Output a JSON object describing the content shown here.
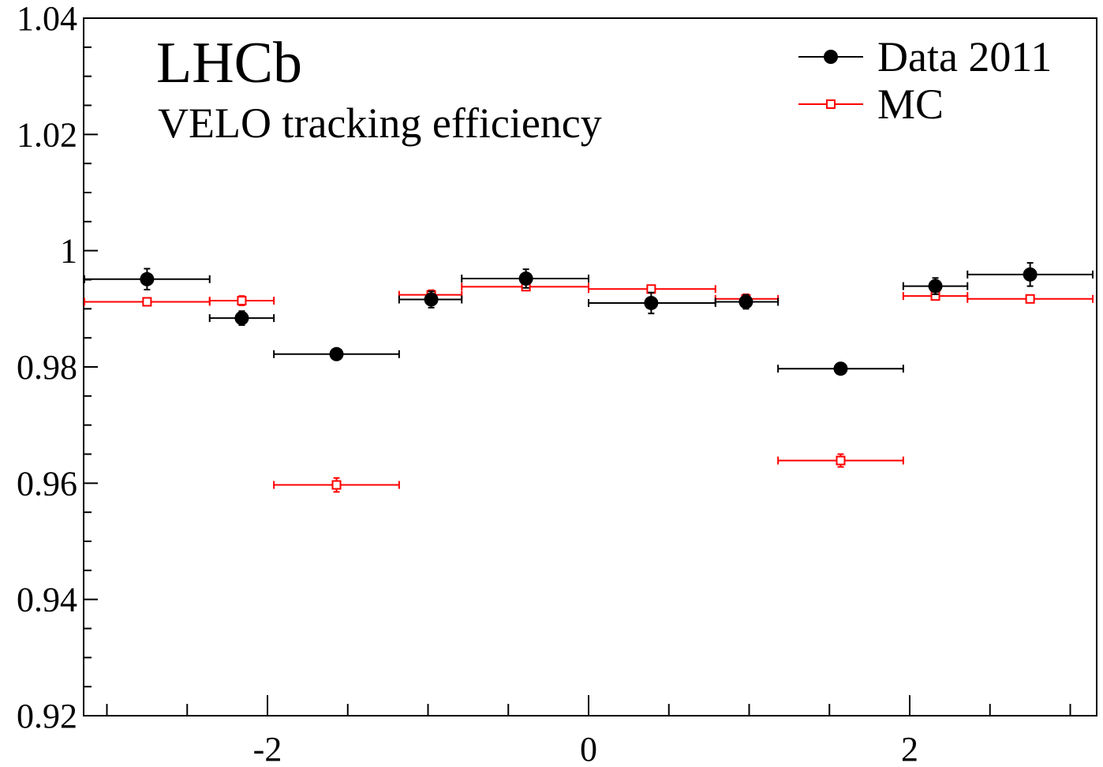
{
  "chart_data": {
    "type": "scatter",
    "title": "LHCb",
    "subtitle": "VELO tracking efficiency",
    "xlabel": "",
    "ylabel": "",
    "xlim": [
      -3.0,
      3.2
    ],
    "ylim": [
      0.92,
      1.04
    ],
    "x_ticks": [
      -2,
      0,
      2
    ],
    "x_tick_labels": [
      "-2",
      "0",
      "2"
    ],
    "y_ticks": [
      0.92,
      0.94,
      0.96,
      0.98,
      1.0,
      1.02,
      1.04
    ],
    "y_tick_labels": [
      "0.92",
      "0.94",
      "0.96",
      "0.98",
      "1",
      "1.02",
      "1.04"
    ],
    "grid": false,
    "legend_position": "top-right",
    "series": [
      {
        "name": "Data 2011",
        "color": "#000000",
        "marker": "filled-circle",
        "points": [
          {
            "x": -2.75,
            "xlo": -3.14,
            "xhi": -2.36,
            "y": 0.9951,
            "err": 0.0018
          },
          {
            "x": -2.16,
            "xlo": -2.36,
            "xhi": -1.96,
            "y": 0.9884,
            "err": 0.0012
          },
          {
            "x": -1.57,
            "xlo": -1.96,
            "xhi": -1.18,
            "y": 0.9822,
            "err": 0.0006
          },
          {
            "x": -0.98,
            "xlo": -1.18,
            "xhi": -0.79,
            "y": 0.9916,
            "err": 0.0014
          },
          {
            "x": -0.39,
            "xlo": -0.79,
            "xhi": 0.0,
            "y": 0.9952,
            "err": 0.0016
          },
          {
            "x": 0.39,
            "xlo": 0.0,
            "xhi": 0.79,
            "y": 0.991,
            "err": 0.0018
          },
          {
            "x": 0.98,
            "xlo": 0.79,
            "xhi": 1.18,
            "y": 0.9912,
            "err": 0.0012
          },
          {
            "x": 1.57,
            "xlo": 1.18,
            "xhi": 1.96,
            "y": 0.9797,
            "err": 0.0006
          },
          {
            "x": 2.16,
            "xlo": 1.96,
            "xhi": 2.36,
            "y": 0.9939,
            "err": 0.0014
          },
          {
            "x": 2.75,
            "xlo": 2.36,
            "xhi": 3.14,
            "y": 0.9959,
            "err": 0.002
          }
        ]
      },
      {
        "name": "MC",
        "color": "#ff0000",
        "marker": "open-square",
        "points": [
          {
            "x": -2.75,
            "xlo": -3.14,
            "xhi": -2.36,
            "y": 0.9912,
            "err": 0.0003
          },
          {
            "x": -2.16,
            "xlo": -2.36,
            "xhi": -1.96,
            "y": 0.9914,
            "err": 0.0008
          },
          {
            "x": -1.57,
            "xlo": -1.96,
            "xhi": -1.18,
            "y": 0.9597,
            "err": 0.0012
          },
          {
            "x": -0.98,
            "xlo": -1.18,
            "xhi": -0.79,
            "y": 0.9924,
            "err": 0.0008
          },
          {
            "x": -0.39,
            "xlo": -0.79,
            "xhi": 0.0,
            "y": 0.9938,
            "err": 0.0004
          },
          {
            "x": 0.39,
            "xlo": 0.0,
            "xhi": 0.79,
            "y": 0.9934,
            "err": 0.0003
          },
          {
            "x": 0.98,
            "xlo": 0.79,
            "xhi": 1.18,
            "y": 0.9917,
            "err": 0.0008
          },
          {
            "x": 1.57,
            "xlo": 1.18,
            "xhi": 1.96,
            "y": 0.9639,
            "err": 0.0011
          },
          {
            "x": 2.16,
            "xlo": 1.96,
            "xhi": 2.36,
            "y": 0.9922,
            "err": 0.0005
          },
          {
            "x": 2.75,
            "xlo": 2.36,
            "xhi": 3.14,
            "y": 0.9917,
            "err": 0.0003
          }
        ]
      }
    ]
  }
}
